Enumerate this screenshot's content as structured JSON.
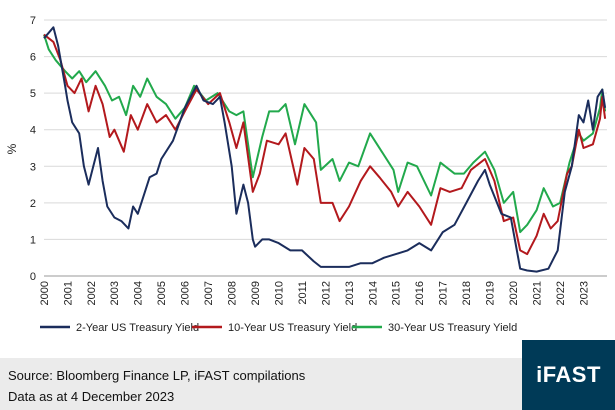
{
  "chart_data": {
    "type": "line",
    "title": "",
    "xlabel": "",
    "ylabel": "%",
    "ylim": [
      0,
      7
    ],
    "xlim": [
      2000,
      2024
    ],
    "yticks": [
      "0",
      "1",
      "2",
      "3",
      "4",
      "5",
      "6",
      "7"
    ],
    "xticks": [
      "2000",
      "2001",
      "2002",
      "2003",
      "2004",
      "2005",
      "2006",
      "2007",
      "2008",
      "2009",
      "2010",
      "2011",
      "2012",
      "2013",
      "2014",
      "2015",
      "2016",
      "2017",
      "2018",
      "2019",
      "2020",
      "2021",
      "2022",
      "2023"
    ],
    "grid": "horizontal",
    "legend_position": "bottom",
    "series": [
      {
        "name": "2-Year US Treasury Yield",
        "color": "#1b2d5c",
        "points": [
          [
            2000,
            6.5
          ],
          [
            2000.4,
            6.8
          ],
          [
            2000.6,
            6.3
          ],
          [
            2000.9,
            5.2
          ],
          [
            2001,
            4.8
          ],
          [
            2001.2,
            4.2
          ],
          [
            2001.5,
            3.9
          ],
          [
            2001.7,
            3.0
          ],
          [
            2001.9,
            2.5
          ],
          [
            2002.1,
            3.0
          ],
          [
            2002.3,
            3.5
          ],
          [
            2002.5,
            2.6
          ],
          [
            2002.7,
            1.9
          ],
          [
            2003,
            1.6
          ],
          [
            2003.3,
            1.5
          ],
          [
            2003.6,
            1.3
          ],
          [
            2003.8,
            1.9
          ],
          [
            2004,
            1.7
          ],
          [
            2004.3,
            2.3
          ],
          [
            2004.5,
            2.7
          ],
          [
            2004.8,
            2.8
          ],
          [
            2005,
            3.2
          ],
          [
            2005.5,
            3.7
          ],
          [
            2006,
            4.6
          ],
          [
            2006.5,
            5.2
          ],
          [
            2006.8,
            4.8
          ],
          [
            2007.2,
            4.7
          ],
          [
            2007.5,
            4.9
          ],
          [
            2007.7,
            4.2
          ],
          [
            2008,
            3.0
          ],
          [
            2008.2,
            1.7
          ],
          [
            2008.5,
            2.5
          ],
          [
            2008.7,
            2.0
          ],
          [
            2008.9,
            1.0
          ],
          [
            2009,
            0.8
          ],
          [
            2009.3,
            1.0
          ],
          [
            2009.6,
            1.0
          ],
          [
            2010,
            0.9
          ],
          [
            2010.5,
            0.7
          ],
          [
            2011,
            0.7
          ],
          [
            2011.5,
            0.4
          ],
          [
            2011.8,
            0.25
          ],
          [
            2012.5,
            0.25
          ],
          [
            2013,
            0.25
          ],
          [
            2013.5,
            0.35
          ],
          [
            2014,
            0.35
          ],
          [
            2014.5,
            0.5
          ],
          [
            2015,
            0.6
          ],
          [
            2015.5,
            0.7
          ],
          [
            2016,
            0.9
          ],
          [
            2016.5,
            0.7
          ],
          [
            2017,
            1.2
          ],
          [
            2017.5,
            1.4
          ],
          [
            2018,
            2.0
          ],
          [
            2018.5,
            2.6
          ],
          [
            2018.8,
            2.9
          ],
          [
            2019,
            2.5
          ],
          [
            2019.5,
            1.7
          ],
          [
            2019.9,
            1.6
          ],
          [
            2020.1,
            0.9
          ],
          [
            2020.3,
            0.2
          ],
          [
            2020.6,
            0.15
          ],
          [
            2021,
            0.12
          ],
          [
            2021.5,
            0.2
          ],
          [
            2021.9,
            0.7
          ],
          [
            2022.2,
            2.3
          ],
          [
            2022.5,
            3.0
          ],
          [
            2022.8,
            4.4
          ],
          [
            2023,
            4.2
          ],
          [
            2023.2,
            4.8
          ],
          [
            2023.4,
            4.0
          ],
          [
            2023.6,
            4.9
          ],
          [
            2023.8,
            5.1
          ],
          [
            2023.92,
            4.6
          ]
        ]
      },
      {
        "name": "10-Year US Treasury Yield",
        "color": "#b3191d",
        "points": [
          [
            2000,
            6.6
          ],
          [
            2000.4,
            6.4
          ],
          [
            2000.7,
            5.9
          ],
          [
            2001,
            5.2
          ],
          [
            2001.3,
            5.0
          ],
          [
            2001.6,
            5.4
          ],
          [
            2001.9,
            4.5
          ],
          [
            2002.2,
            5.2
          ],
          [
            2002.5,
            4.7
          ],
          [
            2002.8,
            3.8
          ],
          [
            2003,
            4.0
          ],
          [
            2003.4,
            3.4
          ],
          [
            2003.7,
            4.4
          ],
          [
            2004,
            4.0
          ],
          [
            2004.4,
            4.7
          ],
          [
            2004.8,
            4.2
          ],
          [
            2005.2,
            4.4
          ],
          [
            2005.6,
            4.0
          ],
          [
            2006,
            4.5
          ],
          [
            2006.5,
            5.1
          ],
          [
            2007,
            4.7
          ],
          [
            2007.5,
            5.0
          ],
          [
            2007.9,
            4.2
          ],
          [
            2008.2,
            3.5
          ],
          [
            2008.5,
            4.2
          ],
          [
            2008.9,
            2.3
          ],
          [
            2009.2,
            2.8
          ],
          [
            2009.5,
            3.7
          ],
          [
            2010,
            3.6
          ],
          [
            2010.3,
            3.9
          ],
          [
            2010.8,
            2.5
          ],
          [
            2011.1,
            3.5
          ],
          [
            2011.5,
            3.2
          ],
          [
            2011.8,
            2.0
          ],
          [
            2012.3,
            2.0
          ],
          [
            2012.6,
            1.5
          ],
          [
            2013,
            1.9
          ],
          [
            2013.5,
            2.6
          ],
          [
            2013.9,
            3.0
          ],
          [
            2014.3,
            2.7
          ],
          [
            2014.8,
            2.3
          ],
          [
            2015.1,
            1.9
          ],
          [
            2015.5,
            2.3
          ],
          [
            2016,
            1.9
          ],
          [
            2016.5,
            1.4
          ],
          [
            2016.9,
            2.4
          ],
          [
            2017.3,
            2.3
          ],
          [
            2017.8,
            2.4
          ],
          [
            2018.2,
            2.9
          ],
          [
            2018.8,
            3.2
          ],
          [
            2019.2,
            2.6
          ],
          [
            2019.6,
            1.5
          ],
          [
            2020,
            1.6
          ],
          [
            2020.3,
            0.7
          ],
          [
            2020.6,
            0.6
          ],
          [
            2021,
            1.1
          ],
          [
            2021.3,
            1.7
          ],
          [
            2021.6,
            1.3
          ],
          [
            2021.9,
            1.5
          ],
          [
            2022.3,
            2.8
          ],
          [
            2022.5,
            3.0
          ],
          [
            2022.8,
            4.0
          ],
          [
            2023,
            3.5
          ],
          [
            2023.4,
            3.6
          ],
          [
            2023.7,
            4.3
          ],
          [
            2023.8,
            4.9
          ],
          [
            2023.92,
            4.3
          ]
        ]
      },
      {
        "name": "30-Year US Treasury Yield",
        "color": "#22a94c",
        "points": [
          [
            2000,
            6.6
          ],
          [
            2000.2,
            6.2
          ],
          [
            2000.5,
            5.9
          ],
          [
            2000.9,
            5.6
          ],
          [
            2001.2,
            5.4
          ],
          [
            2001.5,
            5.6
          ],
          [
            2001.8,
            5.3
          ],
          [
            2002.2,
            5.6
          ],
          [
            2002.6,
            5.2
          ],
          [
            2002.9,
            4.8
          ],
          [
            2003.2,
            4.9
          ],
          [
            2003.5,
            4.4
          ],
          [
            2003.8,
            5.2
          ],
          [
            2004.1,
            4.9
          ],
          [
            2004.4,
            5.4
          ],
          [
            2004.8,
            4.9
          ],
          [
            2005.2,
            4.7
          ],
          [
            2005.6,
            4.3
          ],
          [
            2006,
            4.6
          ],
          [
            2006.4,
            5.2
          ],
          [
            2006.9,
            4.8
          ],
          [
            2007.4,
            5.0
          ],
          [
            2007.9,
            4.5
          ],
          [
            2008.2,
            4.4
          ],
          [
            2008.5,
            4.5
          ],
          [
            2008.9,
            2.7
          ],
          [
            2009.3,
            3.8
          ],
          [
            2009.6,
            4.5
          ],
          [
            2010,
            4.5
          ],
          [
            2010.3,
            4.7
          ],
          [
            2010.7,
            3.6
          ],
          [
            2011.1,
            4.7
          ],
          [
            2011.6,
            4.2
          ],
          [
            2011.8,
            2.9
          ],
          [
            2012.3,
            3.2
          ],
          [
            2012.6,
            2.6
          ],
          [
            2013,
            3.1
          ],
          [
            2013.4,
            3.0
          ],
          [
            2013.9,
            3.9
          ],
          [
            2014.4,
            3.4
          ],
          [
            2014.9,
            2.9
          ],
          [
            2015.1,
            2.3
          ],
          [
            2015.5,
            3.1
          ],
          [
            2015.9,
            3.0
          ],
          [
            2016.5,
            2.2
          ],
          [
            2016.9,
            3.1
          ],
          [
            2017.5,
            2.8
          ],
          [
            2017.9,
            2.8
          ],
          [
            2018.3,
            3.1
          ],
          [
            2018.8,
            3.4
          ],
          [
            2019.2,
            2.9
          ],
          [
            2019.6,
            2.0
          ],
          [
            2020,
            2.3
          ],
          [
            2020.3,
            1.2
          ],
          [
            2020.6,
            1.4
          ],
          [
            2021,
            1.8
          ],
          [
            2021.3,
            2.4
          ],
          [
            2021.7,
            1.9
          ],
          [
            2022,
            2.0
          ],
          [
            2022.4,
            3.1
          ],
          [
            2022.8,
            3.9
          ],
          [
            2023,
            3.7
          ],
          [
            2023.4,
            3.9
          ],
          [
            2023.7,
            4.6
          ],
          [
            2023.8,
            5.1
          ],
          [
            2023.92,
            4.5
          ]
        ]
      }
    ]
  },
  "footer": {
    "source": "Source: Bloomberg Finance LP, iFAST compilations",
    "date": "Data as at 4 December 2023",
    "brand": "iFAST"
  }
}
